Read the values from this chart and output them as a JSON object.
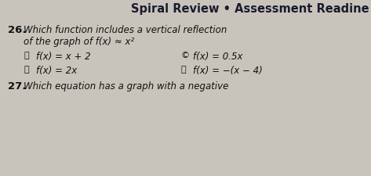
{
  "bg_color": "#c8c4bb",
  "title": "Spiral Review • Assessment Readine",
  "q26_num": "26.",
  "q26_line1": "Which function includes a vertical reflection",
  "q26_line2": "of the graph of f(x) ≈ x²",
  "optA_label": "Ⓐ",
  "optA_text": "f(x) = x + 2",
  "optC_label": "©",
  "optC_text": "f(x) = 0.5x",
  "optB_label": "Ⓑ",
  "optB_text": "f(x) = 2x",
  "optD_label": "⒳",
  "optD_text": "f(x) = −(x − 4)",
  "q27_num": "27.",
  "q27_text": "Which equation has a graph with a negative",
  "text_color": "#111111",
  "title_color": "#1a1a2e",
  "title_fontsize": 10.5,
  "body_fontsize": 8.5,
  "label_fontsize": 8.0,
  "num_fontsize": 9.5
}
